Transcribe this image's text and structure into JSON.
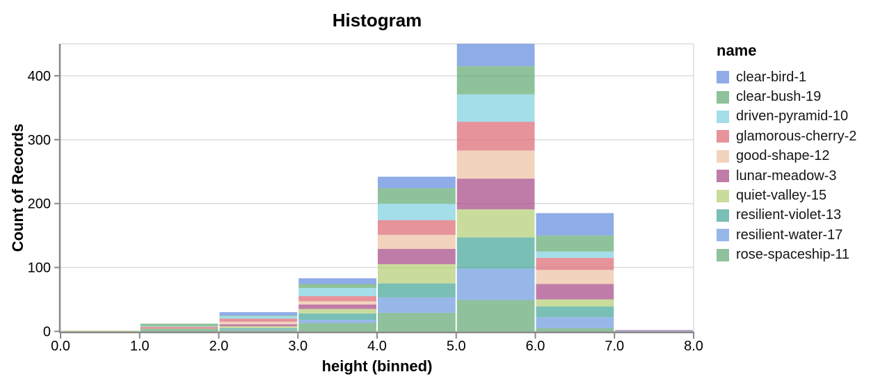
{
  "chart_data": {
    "type": "bar",
    "subtype": "stacked-histogram",
    "title": "Histogram",
    "xlabel": "height (binned)",
    "ylabel": "Count of Records",
    "legend_title": "name",
    "legend_position": "right",
    "grid": true,
    "xlim": [
      0,
      8
    ],
    "ylim": [
      0,
      450
    ],
    "x_ticks": [
      "0.0",
      "1.0",
      "2.0",
      "3.0",
      "4.0",
      "5.0",
      "6.0",
      "7.0",
      "8.0"
    ],
    "y_ticks": [
      "0",
      "100",
      "200",
      "300",
      "400"
    ],
    "bin_starts": [
      0,
      1,
      2,
      3,
      4,
      5,
      6,
      7
    ],
    "bin_width": 1,
    "bin_totals": [
      1,
      12,
      30,
      83,
      242,
      450,
      185,
      2
    ],
    "fill_opacity": 0.7,
    "stack_note": "series stack with first legend entry on top of each bar",
    "series": [
      {
        "name": "clear-bird-1",
        "color": "#5f87de",
        "values": [
          0,
          0,
          5,
          9,
          18,
          35,
          35,
          0
        ]
      },
      {
        "name": "clear-bush-19",
        "color": "#5ea86f",
        "values": [
          0,
          4,
          1,
          6,
          24,
          44,
          25,
          0
        ]
      },
      {
        "name": "driven-pyramid-10",
        "color": "#7cd0e0",
        "values": [
          0,
          1,
          4,
          13,
          26,
          43,
          10,
          0
        ]
      },
      {
        "name": "glamorous-cherry-2",
        "color": "#db656f",
        "values": [
          0,
          3,
          5,
          8,
          23,
          45,
          19,
          0
        ]
      },
      {
        "name": "good-shape-12",
        "color": "#ecc0a1",
        "values": [
          0,
          0,
          4,
          5,
          22,
          44,
          22,
          0
        ]
      },
      {
        "name": "lunar-meadow-3",
        "color": "#a54583",
        "values": [
          0,
          0,
          3,
          7,
          24,
          48,
          24,
          1
        ]
      },
      {
        "name": "quiet-valley-15",
        "color": "#b2cd72",
        "values": [
          1,
          0,
          3,
          7,
          30,
          44,
          11,
          0
        ]
      },
      {
        "name": "resilient-violet-13",
        "color": "#41a497",
        "values": [
          0,
          0,
          2,
          10,
          22,
          49,
          17,
          0
        ]
      },
      {
        "name": "resilient-water-17",
        "color": "#6c98e0",
        "values": [
          0,
          0,
          1,
          5,
          24,
          49,
          17,
          1
        ]
      },
      {
        "name": "rose-spaceship-11",
        "color": "#5fa872",
        "values": [
          0,
          4,
          2,
          13,
          29,
          49,
          5,
          0
        ]
      }
    ],
    "style": {
      "grid_color": "#dddddd",
      "axis_color": "#888888",
      "label_color": "#000000",
      "background": "#ffffff"
    }
  }
}
